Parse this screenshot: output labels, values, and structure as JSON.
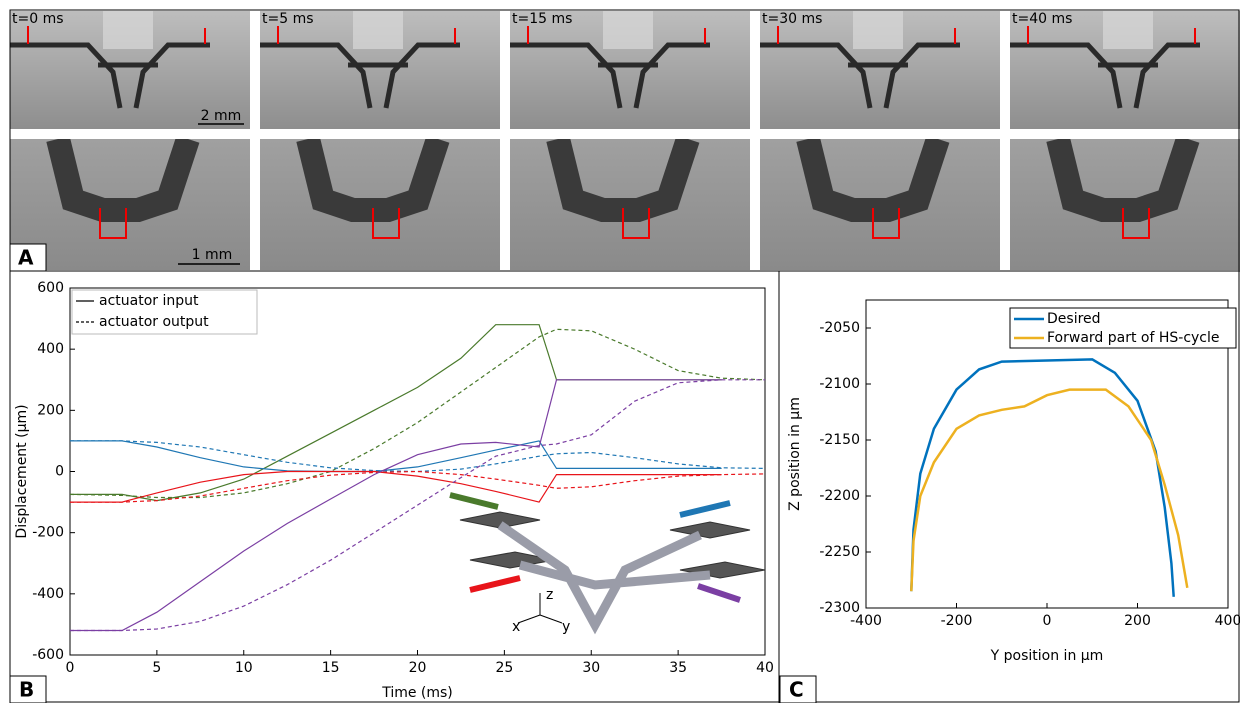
{
  "panel_a": {
    "label": "A",
    "times": [
      "t=0 ms",
      "t=5 ms",
      "t=15 ms",
      "t=30 ms",
      "t=40 ms"
    ],
    "scale_top": "2 mm",
    "scale_bottom": "1 mm"
  },
  "chart_data": [
    {
      "type": "line",
      "panel_label": "B",
      "xlabel": "Time (ms)",
      "ylabel": "Displacement (µm)",
      "xlim": [
        0,
        40
      ],
      "ylim": [
        -600,
        600
      ],
      "xticks": [
        0,
        5,
        10,
        15,
        20,
        25,
        30,
        35,
        40
      ],
      "yticks": [
        -600,
        -400,
        -200,
        0,
        200,
        400,
        600
      ],
      "legend": [
        {
          "label": "actuator input",
          "dashed": false
        },
        {
          "label": "actuator output",
          "dashed": true
        }
      ],
      "inset_axes": [
        "z",
        "x",
        "y"
      ],
      "x": [
        0,
        3,
        5,
        7.5,
        10,
        12.5,
        15,
        17.5,
        20,
        22.5,
        24.5,
        27,
        28,
        30,
        32.5,
        35,
        37.5,
        40
      ],
      "series": [
        {
          "color": "#4a7a2c",
          "dashed": false,
          "values": [
            -75,
            -75,
            -95,
            -70,
            -25,
            50,
            125,
            200,
            275,
            370,
            480,
            480,
            300,
            300,
            300,
            300,
            300,
            null
          ]
        },
        {
          "color": "#4a7a2c",
          "dashed": true,
          "values": [
            -75,
            -78,
            -85,
            -85,
            -70,
            -40,
            0,
            75,
            160,
            260,
            340,
            440,
            465,
            460,
            400,
            330,
            305,
            300
          ]
        },
        {
          "color": "#1f77b4",
          "dashed": false,
          "values": [
            100,
            100,
            80,
            45,
            15,
            2,
            0,
            0,
            15,
            45,
            70,
            100,
            10,
            10,
            10,
            10,
            10,
            null
          ]
        },
        {
          "color": "#1f77b4",
          "dashed": true,
          "values": [
            100,
            100,
            95,
            80,
            55,
            30,
            12,
            3,
            0,
            8,
            25,
            50,
            58,
            62,
            45,
            25,
            12,
            10
          ]
        },
        {
          "color": "#e8141a",
          "dashed": false,
          "values": [
            -100,
            -100,
            -70,
            -35,
            -10,
            0,
            0,
            0,
            -15,
            -40,
            -65,
            -100,
            -10,
            -10,
            -10,
            -10,
            -10,
            null
          ]
        },
        {
          "color": "#e8141a",
          "dashed": true,
          "values": [
            -100,
            -100,
            -95,
            -80,
            -55,
            -30,
            -12,
            -3,
            0,
            -10,
            -25,
            -45,
            -55,
            -50,
            -30,
            -15,
            -10,
            -8
          ]
        },
        {
          "color": "#7b3fa3",
          "dashed": false,
          "values": [
            -520,
            -520,
            -460,
            -360,
            -260,
            -170,
            -90,
            -10,
            55,
            90,
            95,
            80,
            300,
            300,
            300,
            300,
            300,
            null
          ]
        },
        {
          "color": "#7b3fa3",
          "dashed": true,
          "values": [
            -520,
            -520,
            -515,
            -490,
            -440,
            -370,
            -290,
            -200,
            -110,
            -20,
            50,
            85,
            90,
            120,
            230,
            290,
            300,
            300
          ]
        }
      ]
    },
    {
      "type": "line",
      "panel_label": "C",
      "xlabel": "Y position in µm",
      "ylabel": "Z position in µm",
      "xlim": [
        -400,
        400
      ],
      "ylim": [
        -2300,
        -2025
      ],
      "xticks": [
        -400,
        -200,
        0,
        200,
        400
      ],
      "yticks": [
        -2300,
        -2250,
        -2200,
        -2150,
        -2100,
        -2050
      ],
      "series": [
        {
          "name": "Desired",
          "color": "#0072bd",
          "dashed": false,
          "x": [
            -300,
            -295,
            -280,
            -250,
            -200,
            -150,
            -100,
            0,
            100,
            150,
            200,
            240,
            260,
            275,
            280
          ],
          "values": [
            -2285,
            -2230,
            -2180,
            -2140,
            -2105,
            -2087,
            -2080,
            -2079,
            -2078,
            -2090,
            -2115,
            -2160,
            -2210,
            -2260,
            -2290
          ]
        },
        {
          "name": "Forward part of HS-cycle",
          "color": "#edb120",
          "dashed": false,
          "x": [
            -300,
            -295,
            -280,
            -250,
            -200,
            -150,
            -100,
            -50,
            0,
            50,
            100,
            130,
            180,
            230,
            260,
            290,
            305,
            310
          ],
          "values": [
            -2285,
            -2240,
            -2200,
            -2170,
            -2140,
            -2128,
            -2123,
            -2120,
            -2110,
            -2105,
            -2105,
            -2105,
            -2120,
            -2150,
            -2190,
            -2235,
            -2270,
            -2282
          ]
        }
      ]
    }
  ]
}
